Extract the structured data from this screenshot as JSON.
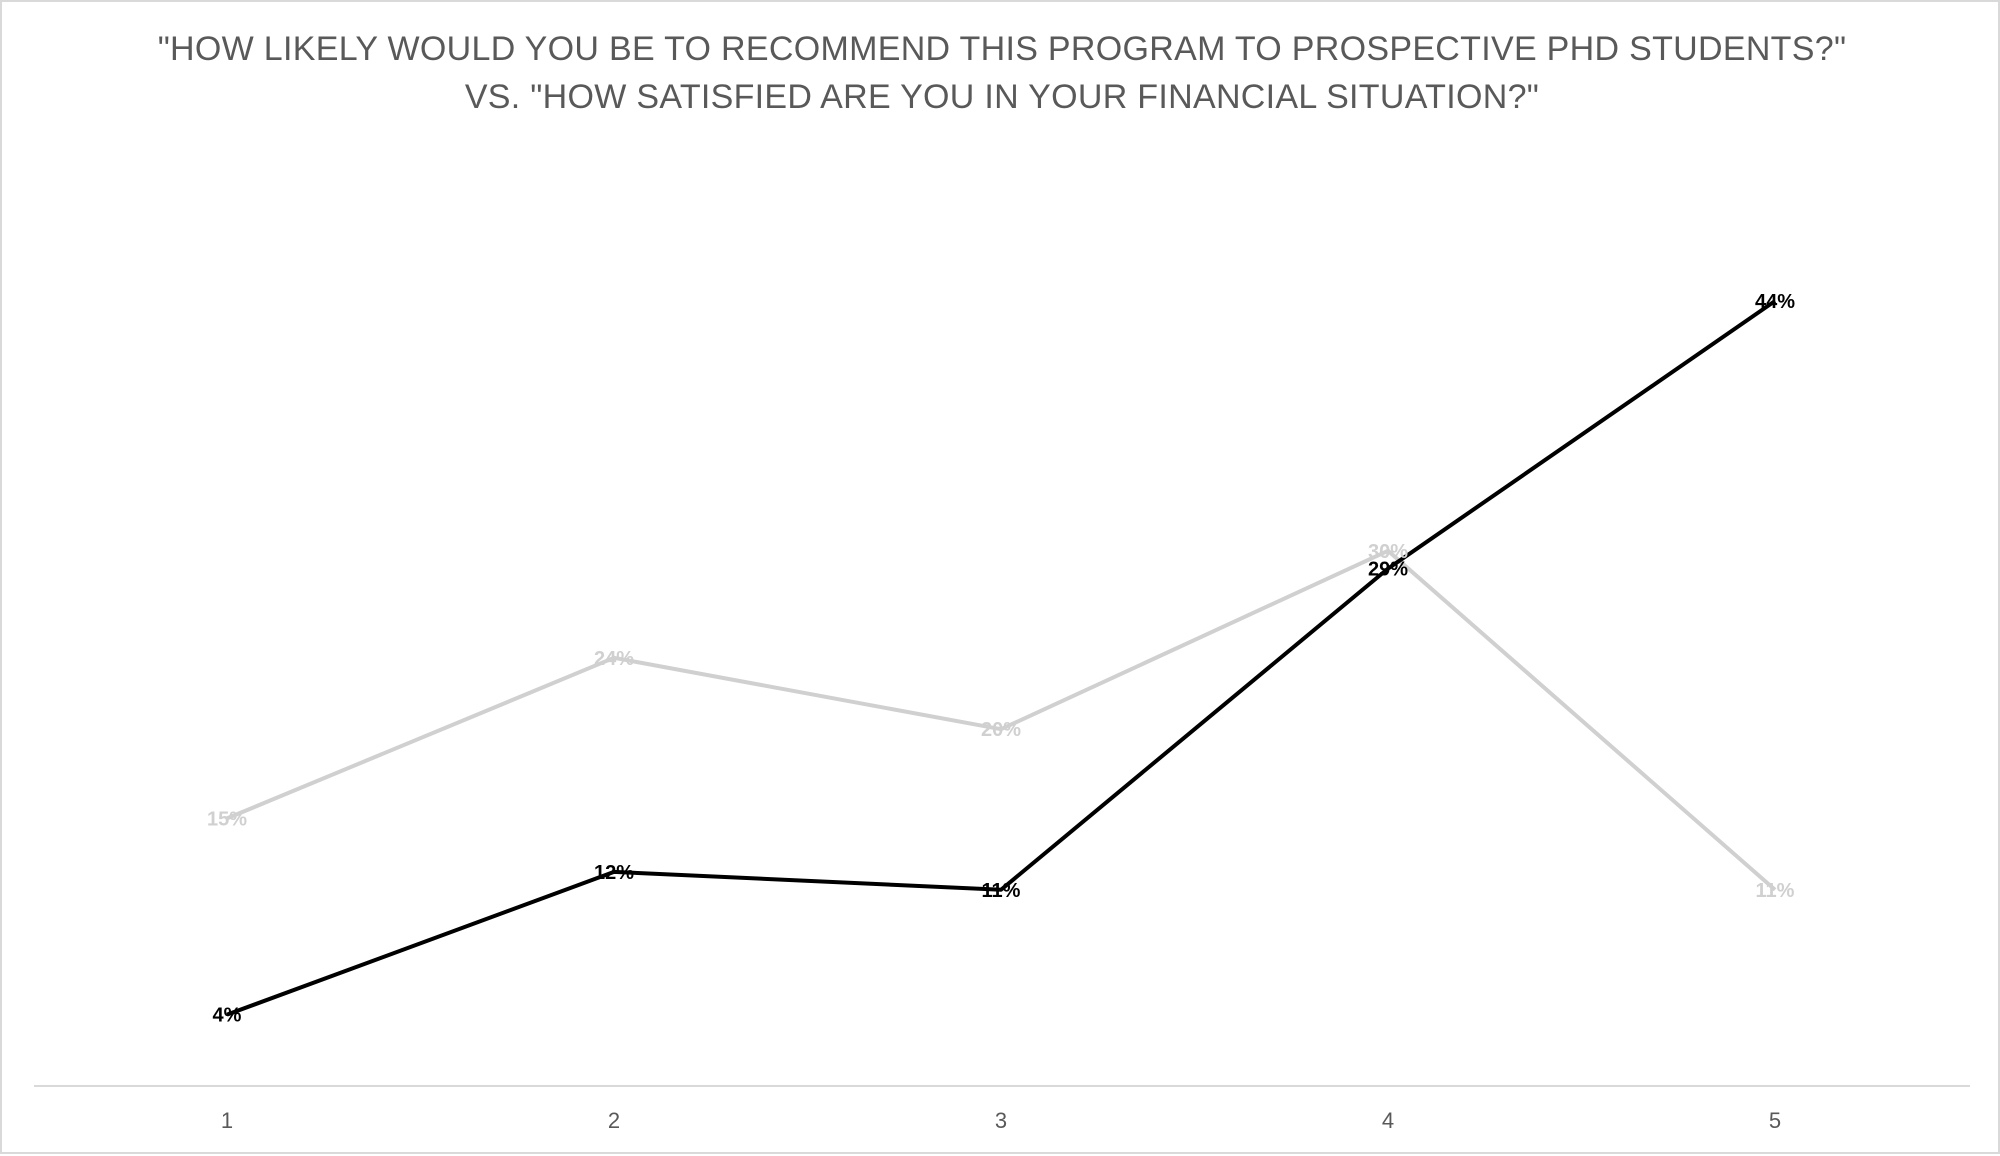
{
  "chart_data": {
    "type": "line",
    "title": "\"HOW LIKELY WOULD YOU BE TO RECOMMEND THIS PROGRAM TO PROSPECTIVE PHD STUDENTS?\"",
    "subtitle": "VS. \"HOW SATISFIED ARE YOU IN YOUR FINANCIAL SITUATION?\"",
    "categories": [
      "1",
      "2",
      "3",
      "4",
      "5"
    ],
    "ylim": [
      0,
      50
    ],
    "unit": "%",
    "grid": false,
    "legend": "none",
    "series": [
      {
        "values": [
          15,
          24,
          20,
          30,
          11
        ],
        "color": "#d0d0d0",
        "labels": [
          "15%",
          "24%",
          "20%",
          "30%",
          "11%"
        ]
      },
      {
        "values": [
          4,
          12,
          11,
          29,
          44
        ],
        "color": "#000000",
        "labels": [
          "4%",
          "12%",
          "11%",
          "29%",
          "44%"
        ]
      }
    ]
  },
  "colors": {
    "axis": "#d9d9d9",
    "text": "#595959"
  }
}
